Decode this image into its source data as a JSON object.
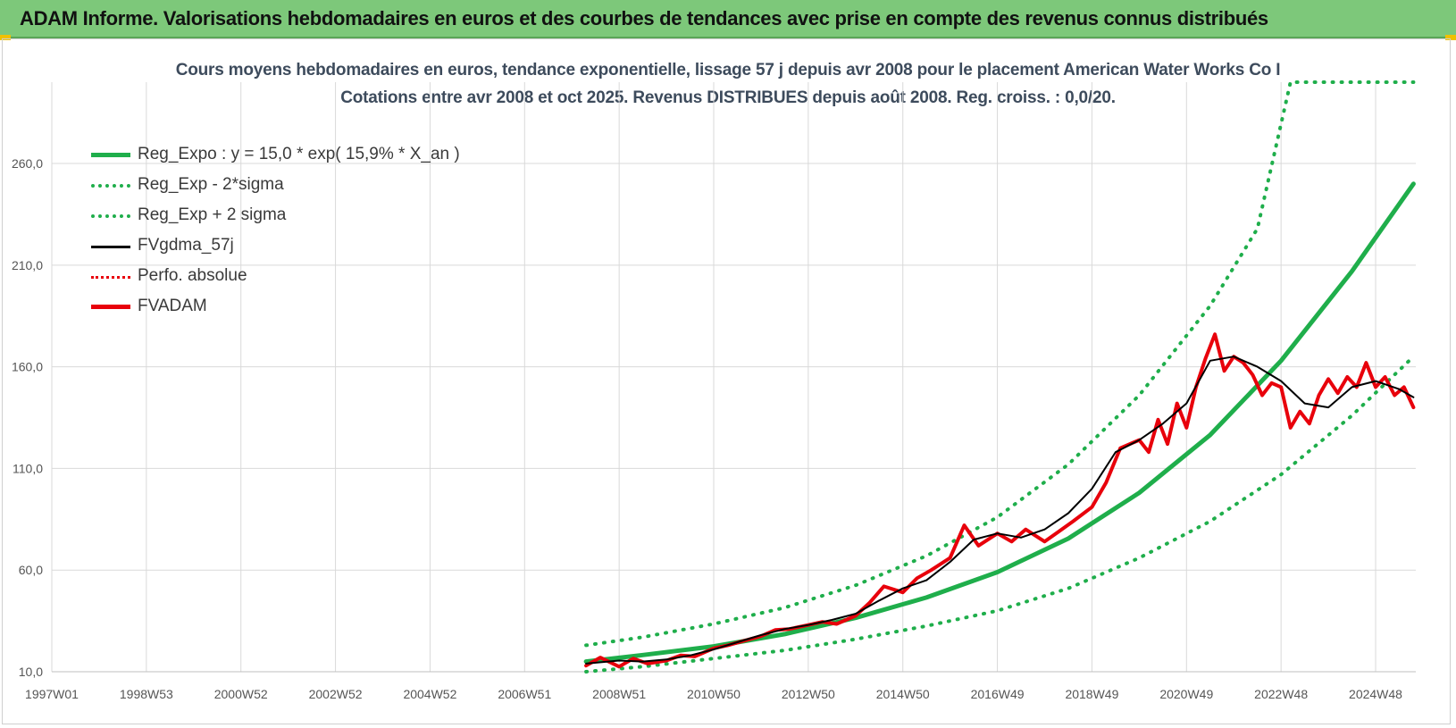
{
  "header": {
    "title": "ADAM Informe. Valorisations hebdomadaires en euros et des courbes de tendances avec prise en compte des revenus connus distribués"
  },
  "colors": {
    "banner": "#7dc87a",
    "reg_green": "#1fae4b",
    "dotted_green": "#1fae4b",
    "black": "#000000",
    "red": "#e8000b",
    "grid": "#d9d9d9"
  },
  "chart_data": {
    "type": "line",
    "title": "Cours moyens hebdomadaires en euros, tendance exponentielle, lissage 57 j depuis avr 2008 pour le placement American Water Works Co I",
    "subtitle": "Cotations entre avr 2008 et oct 2025.  Revenus DISTRIBUES depuis août 2008. Reg. croiss. : 0,0/20.",
    "xlabel": "",
    "ylabel": "",
    "x_ticks": [
      "1997W01",
      "1998W53",
      "2000W52",
      "2002W52",
      "2004W52",
      "2006W51",
      "2008W51",
      "2010W50",
      "2012W50",
      "2014W50",
      "2016W49",
      "2018W49",
      "2020W49",
      "2022W48",
      "2024W48"
    ],
    "y_ticks": [
      "10,0",
      "60,0",
      "110,0",
      "160,0",
      "210,0",
      "260,0"
    ],
    "ylim": [
      10,
      300
    ],
    "xlim": [
      1997.0,
      2025.85
    ],
    "grid": true,
    "legend_position": "top-left",
    "legend": [
      {
        "label": "Reg_Expo : y = 15,0 * exp( 15,9% *  X_an )",
        "style": "solid-thick",
        "color": "#1fae4b"
      },
      {
        "label": "Reg_Exp - 2*sigma",
        "style": "dotted",
        "color": "#1fae4b"
      },
      {
        "label": "Reg_Exp + 2 sigma",
        "style": "dotted",
        "color": "#1fae4b"
      },
      {
        "label": "FVgdma_57j",
        "style": "solid",
        "color": "#000000"
      },
      {
        "label": "Perfo. absolue",
        "style": "dotted",
        "color": "#e8000b"
      },
      {
        "label": "FVADAM",
        "style": "solid-thick",
        "color": "#e8000b"
      }
    ],
    "series": [
      {
        "name": "Reg_Expo : y = 15,0 * exp( 15,9% *  X_an )",
        "x": [
          2008.3,
          2009.5,
          2011.0,
          2012.5,
          2014.0,
          2015.5,
          2017.0,
          2018.5,
          2020.0,
          2021.5,
          2023.0,
          2024.5,
          2025.8
        ],
        "values": [
          15.0,
          18.2,
          22.5,
          28.5,
          36.5,
          46.5,
          59.0,
          75.5,
          98.0,
          126.5,
          163.0,
          207.0,
          250.0
        ]
      },
      {
        "name": "Reg_Exp - 2*sigma",
        "x": [
          2008.3,
          2009.5,
          2011.0,
          2012.5,
          2014.0,
          2015.5,
          2017.0,
          2018.5,
          2020.0,
          2021.5,
          2023.0,
          2024.5,
          2025.8
        ],
        "values": [
          10.0,
          12.5,
          16.5,
          20.5,
          26.0,
          32.5,
          40.0,
          51.0,
          66.0,
          84.0,
          107.0,
          136.0,
          165.0
        ]
      },
      {
        "name": "Reg_Exp + 2 sigma",
        "x": [
          2008.3,
          2009.5,
          2011.0,
          2012.5,
          2014.0,
          2015.5,
          2017.0,
          2018.5,
          2020.0,
          2021.5,
          2022.5,
          2023.2,
          2025.8
        ],
        "values": [
          23.0,
          27.0,
          33.5,
          41.5,
          52.5,
          67.0,
          86.0,
          112.0,
          146.0,
          190.0,
          228.0,
          300.0,
          300.0
        ]
      },
      {
        "name": "FVgdma_57j",
        "x": [
          2008.3,
          2009.0,
          2009.5,
          2010.0,
          2010.5,
          2011.0,
          2011.5,
          2012.0,
          2012.5,
          2013.0,
          2013.5,
          2014.0,
          2014.5,
          2015.0,
          2015.5,
          2016.0,
          2016.5,
          2017.0,
          2017.5,
          2018.0,
          2018.5,
          2019.0,
          2019.5,
          2020.0,
          2020.5,
          2021.0,
          2021.5,
          2022.0,
          2022.5,
          2023.0,
          2023.5,
          2024.0,
          2024.5,
          2025.0,
          2025.5,
          2025.8
        ],
        "values": [
          14.0,
          15.5,
          15.0,
          16.0,
          18.0,
          21.0,
          24.5,
          28.0,
          31.0,
          33.0,
          35.5,
          38.5,
          45.0,
          51.0,
          55.0,
          64.0,
          75.0,
          78.0,
          76.0,
          80.0,
          88.0,
          100.0,
          118.0,
          124.0,
          132.0,
          142.0,
          163.0,
          165.0,
          160.0,
          153.0,
          142.0,
          140.0,
          150.0,
          153.0,
          149.0,
          145.0
        ]
      },
      {
        "name": "FVADAM",
        "x": [
          2008.3,
          2008.6,
          2009.0,
          2009.3,
          2009.6,
          2010.0,
          2010.3,
          2010.6,
          2011.0,
          2011.3,
          2011.6,
          2012.0,
          2012.3,
          2012.6,
          2013.0,
          2013.3,
          2013.6,
          2014.0,
          2014.3,
          2014.6,
          2015.0,
          2015.3,
          2015.6,
          2016.0,
          2016.3,
          2016.6,
          2017.0,
          2017.3,
          2017.6,
          2018.0,
          2018.3,
          2018.6,
          2019.0,
          2019.3,
          2019.6,
          2020.0,
          2020.2,
          2020.4,
          2020.6,
          2020.8,
          2021.0,
          2021.2,
          2021.4,
          2021.6,
          2021.8,
          2022.0,
          2022.2,
          2022.4,
          2022.6,
          2022.8,
          2023.0,
          2023.2,
          2023.4,
          2023.6,
          2023.8,
          2024.0,
          2024.2,
          2024.4,
          2024.6,
          2024.8,
          2025.0,
          2025.2,
          2025.4,
          2025.6,
          2025.8
        ],
        "values": [
          13.0,
          17.0,
          12.5,
          16.5,
          14.0,
          15.5,
          18.0,
          17.5,
          21.5,
          23.0,
          25.0,
          27.5,
          30.5,
          31.0,
          33.0,
          34.5,
          33.5,
          37.5,
          44.0,
          52.0,
          49.0,
          56.0,
          60.0,
          66.0,
          82.0,
          72.0,
          78.0,
          74.0,
          80.0,
          74.0,
          79.0,
          84.0,
          91.0,
          103.0,
          120.0,
          124.0,
          118.0,
          134.0,
          122.0,
          142.0,
          130.0,
          150.0,
          164.0,
          176.0,
          158.0,
          165.0,
          162.0,
          156.0,
          146.0,
          152.0,
          150.0,
          130.0,
          138.0,
          132.0,
          146.0,
          154.0,
          147.0,
          155.0,
          150.0,
          162.0,
          150.0,
          155.0,
          146.0,
          150.0,
          140.0
        ]
      }
    ]
  }
}
